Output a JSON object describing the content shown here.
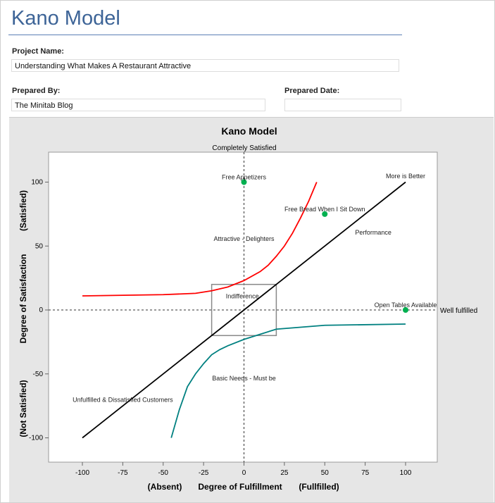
{
  "header": {
    "title": "Kano Model"
  },
  "form": {
    "project_name_label": "Project Name:",
    "project_name_value": "Understanding What Makes A Restaurant Attractive",
    "prepared_by_label": "Prepared By:",
    "prepared_by_value": "The Minitab Blog",
    "prepared_date_label": "Prepared Date:",
    "prepared_date_value": ""
  },
  "chart_data": {
    "type": "line",
    "title": "Kano Model",
    "top_label": "Completely Satisfied",
    "right_label": "Well fulfilled",
    "xlabel": {
      "left": "(Absent)",
      "center": "Degree of Fulfillment",
      "right": "(Fullfilled)"
    },
    "ylabel": {
      "bottom": "(Not Satisfied)",
      "center": "Degree of Satisfaction",
      "top": "(Satisfied)"
    },
    "xlim": [
      -120,
      120
    ],
    "ylim": [
      -120,
      123
    ],
    "xticks": [
      -100,
      -75,
      -50,
      -25,
      0,
      25,
      50,
      75,
      100
    ],
    "yticks": [
      -100,
      -50,
      0,
      50,
      100
    ],
    "grid": false,
    "colors": {
      "attractive": "#ff0000",
      "must_be": "#008080",
      "performance": "#000000",
      "points": "#00b050"
    },
    "series": [
      {
        "key": "attractive",
        "x": [
          -100,
          -50,
          -30,
          -20,
          -10,
          0,
          10,
          15,
          20,
          25,
          30,
          35,
          40,
          45
        ],
        "y": [
          11,
          12,
          13,
          15,
          18,
          23,
          30,
          35,
          42,
          50,
          60,
          72,
          85,
          100
        ]
      },
      {
        "key": "must_be",
        "x": [
          -45,
          -40,
          -35,
          -30,
          -25,
          -20,
          -15,
          -10,
          0,
          10,
          20,
          50,
          100
        ],
        "y": [
          -100,
          -78,
          -60,
          -50,
          -42,
          -35,
          -31,
          -28,
          -23,
          -19,
          -15,
          -12,
          -11
        ]
      },
      {
        "key": "performance",
        "x": [
          -100,
          100
        ],
        "y": [
          -100,
          100
        ]
      }
    ],
    "points": [
      {
        "label": "Free Appetizers",
        "x": 0,
        "y": 100
      },
      {
        "label": "Free Bread When I Sit Down",
        "x": 50,
        "y": 75
      },
      {
        "label": "Open Tables Available",
        "x": 100,
        "y": 0
      }
    ],
    "indifference_box": {
      "x": [
        -20,
        20
      ],
      "y": [
        -20,
        20
      ]
    },
    "annotations": [
      {
        "text": "More is Better",
        "x": 100,
        "y": 103
      },
      {
        "text": "Performance",
        "x": 80,
        "y": 59
      },
      {
        "text": "Attractive - Delighters",
        "x": 0,
        "y": 54
      },
      {
        "text": "Indifference",
        "x": -1,
        "y": 9
      },
      {
        "text": "Basic Needs - Must be",
        "x": 0,
        "y": -55
      },
      {
        "text": "Unfulfilled & Dissatisfied Customers",
        "x": -75,
        "y": -72
      }
    ]
  }
}
